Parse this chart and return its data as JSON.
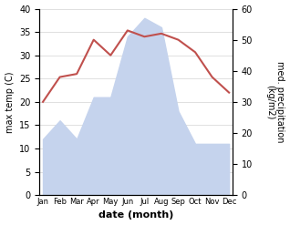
{
  "months": [
    "Jan",
    "Feb",
    "Mar",
    "Apr",
    "May",
    "Jun",
    "Jul",
    "Aug",
    "Sep",
    "Oct",
    "Nov",
    "Dec"
  ],
  "temp_fill": [
    12,
    16,
    12,
    21,
    21,
    34,
    38,
    36,
    18,
    11,
    11,
    11
  ],
  "precip_line": [
    30,
    38,
    39,
    50,
    45,
    53,
    51,
    52,
    50,
    46,
    38,
    33
  ],
  "temp_color": "#c0504d",
  "precip_fill_color": "#c5d3ed",
  "xlabel": "date (month)",
  "ylabel_left": "max temp (C)",
  "ylabel_right": "med. precipitation\n(kg/m2)",
  "ylim_left": [
    0,
    40
  ],
  "ylim_right": [
    0,
    60
  ]
}
